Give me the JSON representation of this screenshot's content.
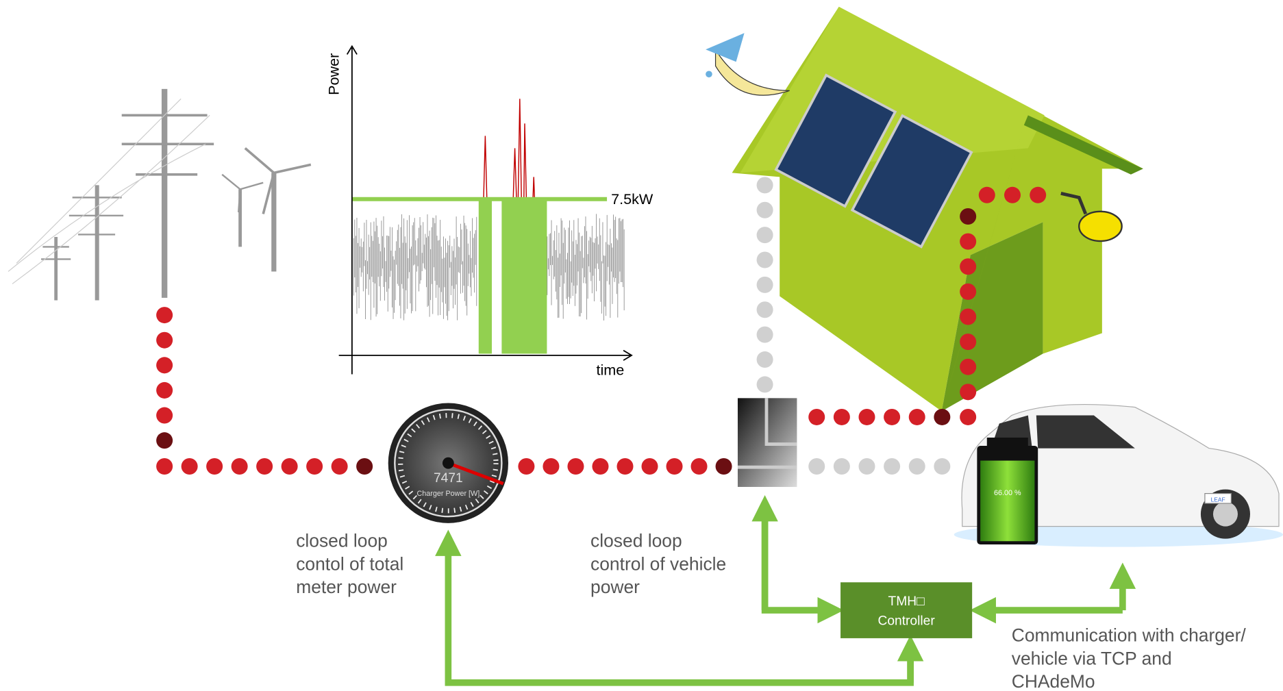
{
  "inset_chart": {
    "y_label": "Power",
    "x_label": "time",
    "threshold_label": "7.5kW"
  },
  "gauge": {
    "value_text": "7471",
    "label": "Charger Power [W]"
  },
  "meter_caption": {
    "lines": [
      "closed loop",
      "contol of total",
      "meter power"
    ]
  },
  "vehicle_caption": {
    "lines": [
      "closed loop",
      "control of vehicle",
      "power"
    ]
  },
  "controller": {
    "lines": [
      "TMH□",
      "Controller"
    ]
  },
  "communication": {
    "lines": [
      "Communication with charger/",
      "vehicle via TCP and",
      "CHAdeMo"
    ]
  },
  "battery": {
    "label": "66.00 %"
  },
  "car": {
    "badge": "LEAF"
  }
}
